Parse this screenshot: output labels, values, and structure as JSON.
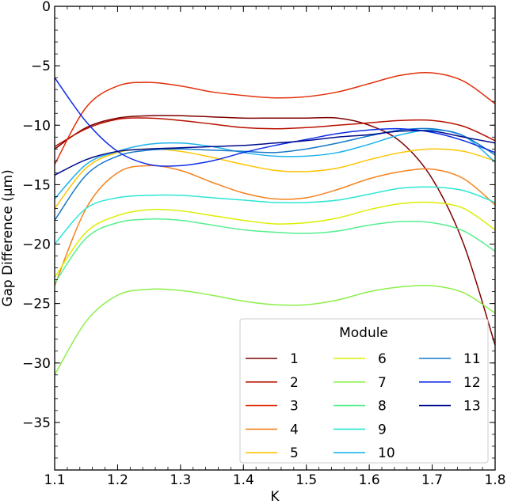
{
  "chart_data": {
    "type": "line",
    "title": "",
    "xlabel": "K",
    "ylabel": "Gap Difference (μm)",
    "xlim": [
      1.1,
      1.8
    ],
    "ylim": [
      -39,
      0
    ],
    "xticks": [
      1.1,
      1.2,
      1.3,
      1.4,
      1.5,
      1.6,
      1.7,
      1.8
    ],
    "xtick_labels": [
      "1.1",
      "1.2",
      "1.3",
      "1.4",
      "1.5",
      "1.6",
      "1.7",
      "1.8"
    ],
    "yticks": [
      0,
      -5,
      -10,
      -15,
      -20,
      -25,
      -30,
      -35
    ],
    "ytick_labels": [
      "0",
      "−5",
      "−10",
      "−15",
      "−20",
      "−25",
      "−30",
      "−35"
    ],
    "grid": false,
    "legend": {
      "title": "Module",
      "placement": "lower-right",
      "columns": 3
    },
    "series": [
      {
        "name": "1",
        "color": "#7f0000",
        "x": [
          1.1,
          1.15,
          1.2,
          1.25,
          1.3,
          1.35,
          1.4,
          1.45,
          1.5,
          1.55,
          1.6,
          1.65,
          1.7,
          1.75,
          1.8
        ],
        "y": [
          -12.0,
          -10.2,
          -9.4,
          -9.2,
          -9.2,
          -9.3,
          -9.4,
          -9.4,
          -9.4,
          -9.4,
          -10.0,
          -11.4,
          -14.5,
          -20.0,
          -28.5
        ]
      },
      {
        "name": "2",
        "color": "#b81000",
        "x": [
          1.1,
          1.15,
          1.2,
          1.25,
          1.3,
          1.35,
          1.4,
          1.45,
          1.5,
          1.55,
          1.6,
          1.65,
          1.7,
          1.75,
          1.8
        ],
        "y": [
          -11.8,
          -10.3,
          -9.5,
          -9.4,
          -9.6,
          -9.9,
          -10.2,
          -10.3,
          -10.2,
          -10.0,
          -9.8,
          -9.6,
          -9.6,
          -10.1,
          -11.3
        ]
      },
      {
        "name": "3",
        "color": "#e2300a",
        "x": [
          1.1,
          1.15,
          1.2,
          1.25,
          1.3,
          1.35,
          1.4,
          1.45,
          1.5,
          1.55,
          1.6,
          1.65,
          1.7,
          1.75,
          1.8
        ],
        "y": [
          -13.3,
          -8.5,
          -6.7,
          -6.4,
          -6.7,
          -7.2,
          -7.5,
          -7.7,
          -7.6,
          -7.2,
          -6.5,
          -5.8,
          -5.6,
          -6.3,
          -8.2
        ]
      },
      {
        "name": "4",
        "color": "#f5821e",
        "x": [
          1.1,
          1.15,
          1.2,
          1.25,
          1.3,
          1.35,
          1.4,
          1.45,
          1.5,
          1.55,
          1.6,
          1.65,
          1.7,
          1.75,
          1.8
        ],
        "y": [
          -23.5,
          -17.0,
          -14.0,
          -13.4,
          -13.8,
          -14.8,
          -15.7,
          -16.2,
          -16.1,
          -15.4,
          -14.5,
          -13.9,
          -13.7,
          -14.5,
          -16.7
        ]
      },
      {
        "name": "5",
        "color": "#ffc400",
        "x": [
          1.1,
          1.15,
          1.2,
          1.25,
          1.3,
          1.35,
          1.4,
          1.45,
          1.5,
          1.55,
          1.6,
          1.65,
          1.7,
          1.75,
          1.8
        ],
        "y": [
          -17.0,
          -13.6,
          -12.3,
          -12.0,
          -12.2,
          -12.7,
          -13.3,
          -13.8,
          -13.9,
          -13.6,
          -12.9,
          -12.3,
          -12.0,
          -12.2,
          -13.0
        ]
      },
      {
        "name": "6",
        "color": "#dcee00",
        "x": [
          1.1,
          1.15,
          1.2,
          1.25,
          1.3,
          1.35,
          1.4,
          1.45,
          1.5,
          1.55,
          1.6,
          1.65,
          1.7,
          1.75,
          1.8
        ],
        "y": [
          -22.8,
          -19.0,
          -17.6,
          -17.1,
          -17.2,
          -17.6,
          -18.0,
          -18.3,
          -18.2,
          -17.8,
          -17.1,
          -16.6,
          -16.5,
          -17.0,
          -18.8
        ]
      },
      {
        "name": "7",
        "color": "#8cf04a",
        "x": [
          1.1,
          1.15,
          1.2,
          1.25,
          1.3,
          1.35,
          1.4,
          1.45,
          1.5,
          1.55,
          1.6,
          1.65,
          1.7,
          1.75,
          1.8
        ],
        "y": [
          -31.0,
          -26.5,
          -24.3,
          -23.8,
          -23.9,
          -24.3,
          -24.8,
          -25.1,
          -25.1,
          -24.7,
          -24.0,
          -23.6,
          -23.5,
          -24.1,
          -25.8
        ]
      },
      {
        "name": "8",
        "color": "#55f08f",
        "x": [
          1.1,
          1.15,
          1.2,
          1.25,
          1.3,
          1.35,
          1.4,
          1.45,
          1.5,
          1.55,
          1.6,
          1.65,
          1.7,
          1.75,
          1.8
        ],
        "y": [
          -23.3,
          -19.5,
          -18.2,
          -17.9,
          -18.0,
          -18.4,
          -18.8,
          -19.0,
          -19.1,
          -18.9,
          -18.4,
          -18.1,
          -18.2,
          -18.9,
          -20.6
        ]
      },
      {
        "name": "9",
        "color": "#2de6d4",
        "x": [
          1.1,
          1.15,
          1.2,
          1.25,
          1.3,
          1.35,
          1.4,
          1.45,
          1.5,
          1.55,
          1.6,
          1.65,
          1.7,
          1.75,
          1.8
        ],
        "y": [
          -20.0,
          -17.0,
          -16.1,
          -15.9,
          -15.9,
          -16.1,
          -16.3,
          -16.5,
          -16.5,
          -16.3,
          -15.8,
          -15.3,
          -15.2,
          -15.5,
          -16.5
        ]
      },
      {
        "name": "10",
        "color": "#1bb2ee",
        "x": [
          1.1,
          1.15,
          1.2,
          1.25,
          1.3,
          1.35,
          1.4,
          1.45,
          1.5,
          1.55,
          1.6,
          1.65,
          1.7,
          1.75,
          1.8
        ],
        "y": [
          -16.2,
          -13.3,
          -12.2,
          -11.6,
          -11.5,
          -11.8,
          -12.3,
          -12.6,
          -12.6,
          -12.3,
          -11.6,
          -10.8,
          -10.4,
          -10.9,
          -13.1
        ]
      },
      {
        "name": "11",
        "color": "#1478c8",
        "x": [
          1.1,
          1.15,
          1.2,
          1.25,
          1.3,
          1.35,
          1.4,
          1.45,
          1.5,
          1.55,
          1.6,
          1.65,
          1.7,
          1.75,
          1.8
        ],
        "y": [
          -18.0,
          -14.2,
          -12.6,
          -12.1,
          -12.0,
          -12.1,
          -12.2,
          -12.3,
          -12.0,
          -11.5,
          -10.9,
          -10.4,
          -10.3,
          -10.9,
          -12.5
        ]
      },
      {
        "name": "12",
        "color": "#0e2be6",
        "x": [
          1.1,
          1.15,
          1.2,
          1.25,
          1.3,
          1.35,
          1.4,
          1.45,
          1.5,
          1.55,
          1.6,
          1.65,
          1.7,
          1.75,
          1.8
        ],
        "y": [
          -6.0,
          -9.7,
          -12.2,
          -13.3,
          -13.4,
          -13.0,
          -12.3,
          -11.7,
          -11.2,
          -10.7,
          -10.4,
          -10.3,
          -10.6,
          -11.3,
          -12.3
        ]
      },
      {
        "name": "13",
        "color": "#000a8c",
        "x": [
          1.1,
          1.15,
          1.2,
          1.25,
          1.3,
          1.35,
          1.4,
          1.45,
          1.5,
          1.55,
          1.6,
          1.65,
          1.7,
          1.75,
          1.8
        ],
        "y": [
          -14.2,
          -12.9,
          -12.2,
          -12.0,
          -11.9,
          -11.8,
          -11.7,
          -11.5,
          -11.3,
          -11.0,
          -10.8,
          -10.5,
          -10.5,
          -11.0,
          -11.5
        ]
      }
    ]
  }
}
